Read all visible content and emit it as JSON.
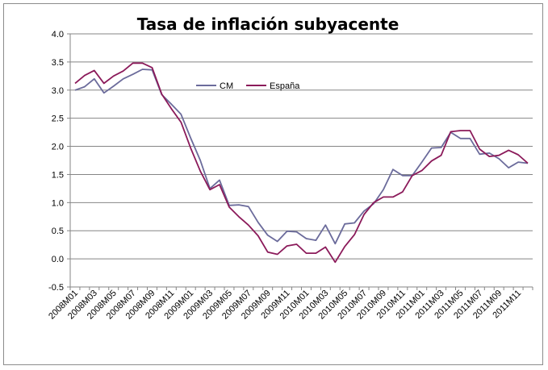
{
  "chart_data": {
    "type": "line",
    "title": "Tasa de inflación subyacente",
    "ylim": [
      -0.5,
      4.0
    ],
    "yticks": [
      "4.0",
      "3.5",
      "3.0",
      "2.5",
      "2.0",
      "1.5",
      "1.0",
      "0.5",
      "0.0",
      "-0.5"
    ],
    "ytick_values": [
      4.0,
      3.5,
      3.0,
      2.5,
      2.0,
      1.5,
      1.0,
      0.5,
      0.0,
      -0.5
    ],
    "grid": "horizontal",
    "legend_position": "top-center",
    "x": [
      "2008M01",
      "2008M02",
      "2008M03",
      "2008M04",
      "2008M05",
      "2008M06",
      "2008M07",
      "2008M08",
      "2008M09",
      "2008M10",
      "2008M11",
      "2008M12",
      "2009M01",
      "2009M02",
      "2009M03",
      "2009M04",
      "2009M05",
      "2009M06",
      "2009M07",
      "2009M08",
      "2009M09",
      "2009M10",
      "2009M11",
      "2009M12",
      "2010M01",
      "2010M02",
      "2010M03",
      "2010M04",
      "2010M05",
      "2010M06",
      "2010M07",
      "2010M08",
      "2010M09",
      "2010M10",
      "2010M11",
      "2010M12",
      "2011M01",
      "2011M02",
      "2011M03",
      "2011M04",
      "2011M05",
      "2011M06",
      "2011M07",
      "2011M08",
      "2011M09",
      "2011M10",
      "2011M11",
      "2011M12"
    ],
    "xtick_labels": [
      "2008M01",
      "2008M03",
      "2008M05",
      "2008M07",
      "2008M09",
      "2008M11",
      "2009M01",
      "2009M03",
      "2009M05",
      "2009M07",
      "2009M09",
      "2009M11",
      "2010M01",
      "2010M03",
      "2010M05",
      "2010M07",
      "2010M09",
      "2010M11",
      "2011M01",
      "2011M03",
      "2011M05",
      "2011M07",
      "2011M09",
      "2011M11"
    ],
    "series": [
      {
        "name": "CM",
        "color": "#6b6b9b",
        "values": [
          3.0,
          3.06,
          3.2,
          2.95,
          3.07,
          3.2,
          3.28,
          3.37,
          3.36,
          2.92,
          2.75,
          2.57,
          2.15,
          1.75,
          1.25,
          1.4,
          0.95,
          0.96,
          0.93,
          0.65,
          0.42,
          0.31,
          0.49,
          0.48,
          0.36,
          0.33,
          0.6,
          0.27,
          0.62,
          0.64,
          0.85,
          0.98,
          1.23,
          1.59,
          1.48,
          1.48,
          1.72,
          1.97,
          1.98,
          2.25,
          2.14,
          2.14,
          1.86,
          1.88,
          1.78,
          1.62,
          1.72,
          1.7
        ]
      },
      {
        "name": "España",
        "color": "#8b1a5a",
        "values": [
          3.12,
          3.26,
          3.35,
          3.12,
          3.25,
          3.34,
          3.48,
          3.48,
          3.4,
          2.93,
          2.67,
          2.43,
          1.97,
          1.56,
          1.23,
          1.32,
          0.92,
          0.75,
          0.6,
          0.41,
          0.12,
          0.08,
          0.23,
          0.26,
          0.1,
          0.1,
          0.21,
          -0.06,
          0.22,
          0.43,
          0.79,
          1.0,
          1.1,
          1.1,
          1.19,
          1.48,
          1.57,
          1.74,
          1.84,
          2.26,
          2.28,
          2.28,
          1.95,
          1.82,
          1.84,
          1.93,
          1.85,
          1.7
        ]
      }
    ]
  }
}
